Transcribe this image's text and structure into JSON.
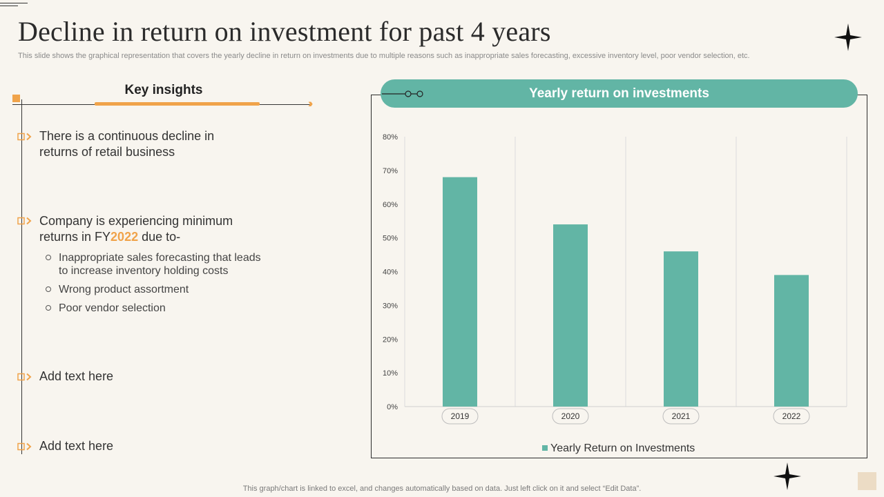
{
  "title": "Decline in return on investment for past 4 years",
  "subtitle": "This slide shows the graphical representation that covers the yearly  decline in return on investments due to multiple reasons such as inappropriate sales forecasting, excessive inventory level,  poor vendor selection, etc.",
  "footer": "This graph/chart is linked to excel,  and changes automatically based on data. Just left click on it and select “Edit Data”.",
  "colors": {
    "accent": "#f0a34a",
    "teal": "#62b5a5",
    "background": "#f8f5ef"
  },
  "key_insights": {
    "label": "Key insights",
    "points": [
      {
        "line1": "There is a continuous decline in",
        "line2": "returns of retail business"
      },
      {
        "line1": "Company is experiencing minimum",
        "line2_pre": "returns in FY",
        "line2_highlight": "2022",
        "line2_post": " due to-",
        "subpoints": [
          {
            "line1": "Inappropriate sales forecasting that  leads",
            "line2": "to increase inventory  holding costs"
          },
          {
            "line1": "Wrong product assortment"
          },
          {
            "line1": "Poor vendor selection"
          }
        ]
      },
      {
        "line1": "Add text here"
      },
      {
        "line1": "Add text here"
      }
    ]
  },
  "chart_data": {
    "type": "bar",
    "title": "Yearly return on investments",
    "categories": [
      "2019",
      "2020",
      "2021",
      "2022"
    ],
    "series": [
      {
        "name": "Yearly Return on Investments",
        "values": [
          68,
          54,
          46,
          39
        ]
      }
    ],
    "ylim": [
      0,
      80
    ],
    "y_ticks": [
      0,
      10,
      20,
      30,
      40,
      50,
      60,
      70,
      80
    ],
    "y_unit": "%",
    "xlabel": "",
    "ylabel": "",
    "legend": "bottom",
    "grid": "vertical"
  }
}
